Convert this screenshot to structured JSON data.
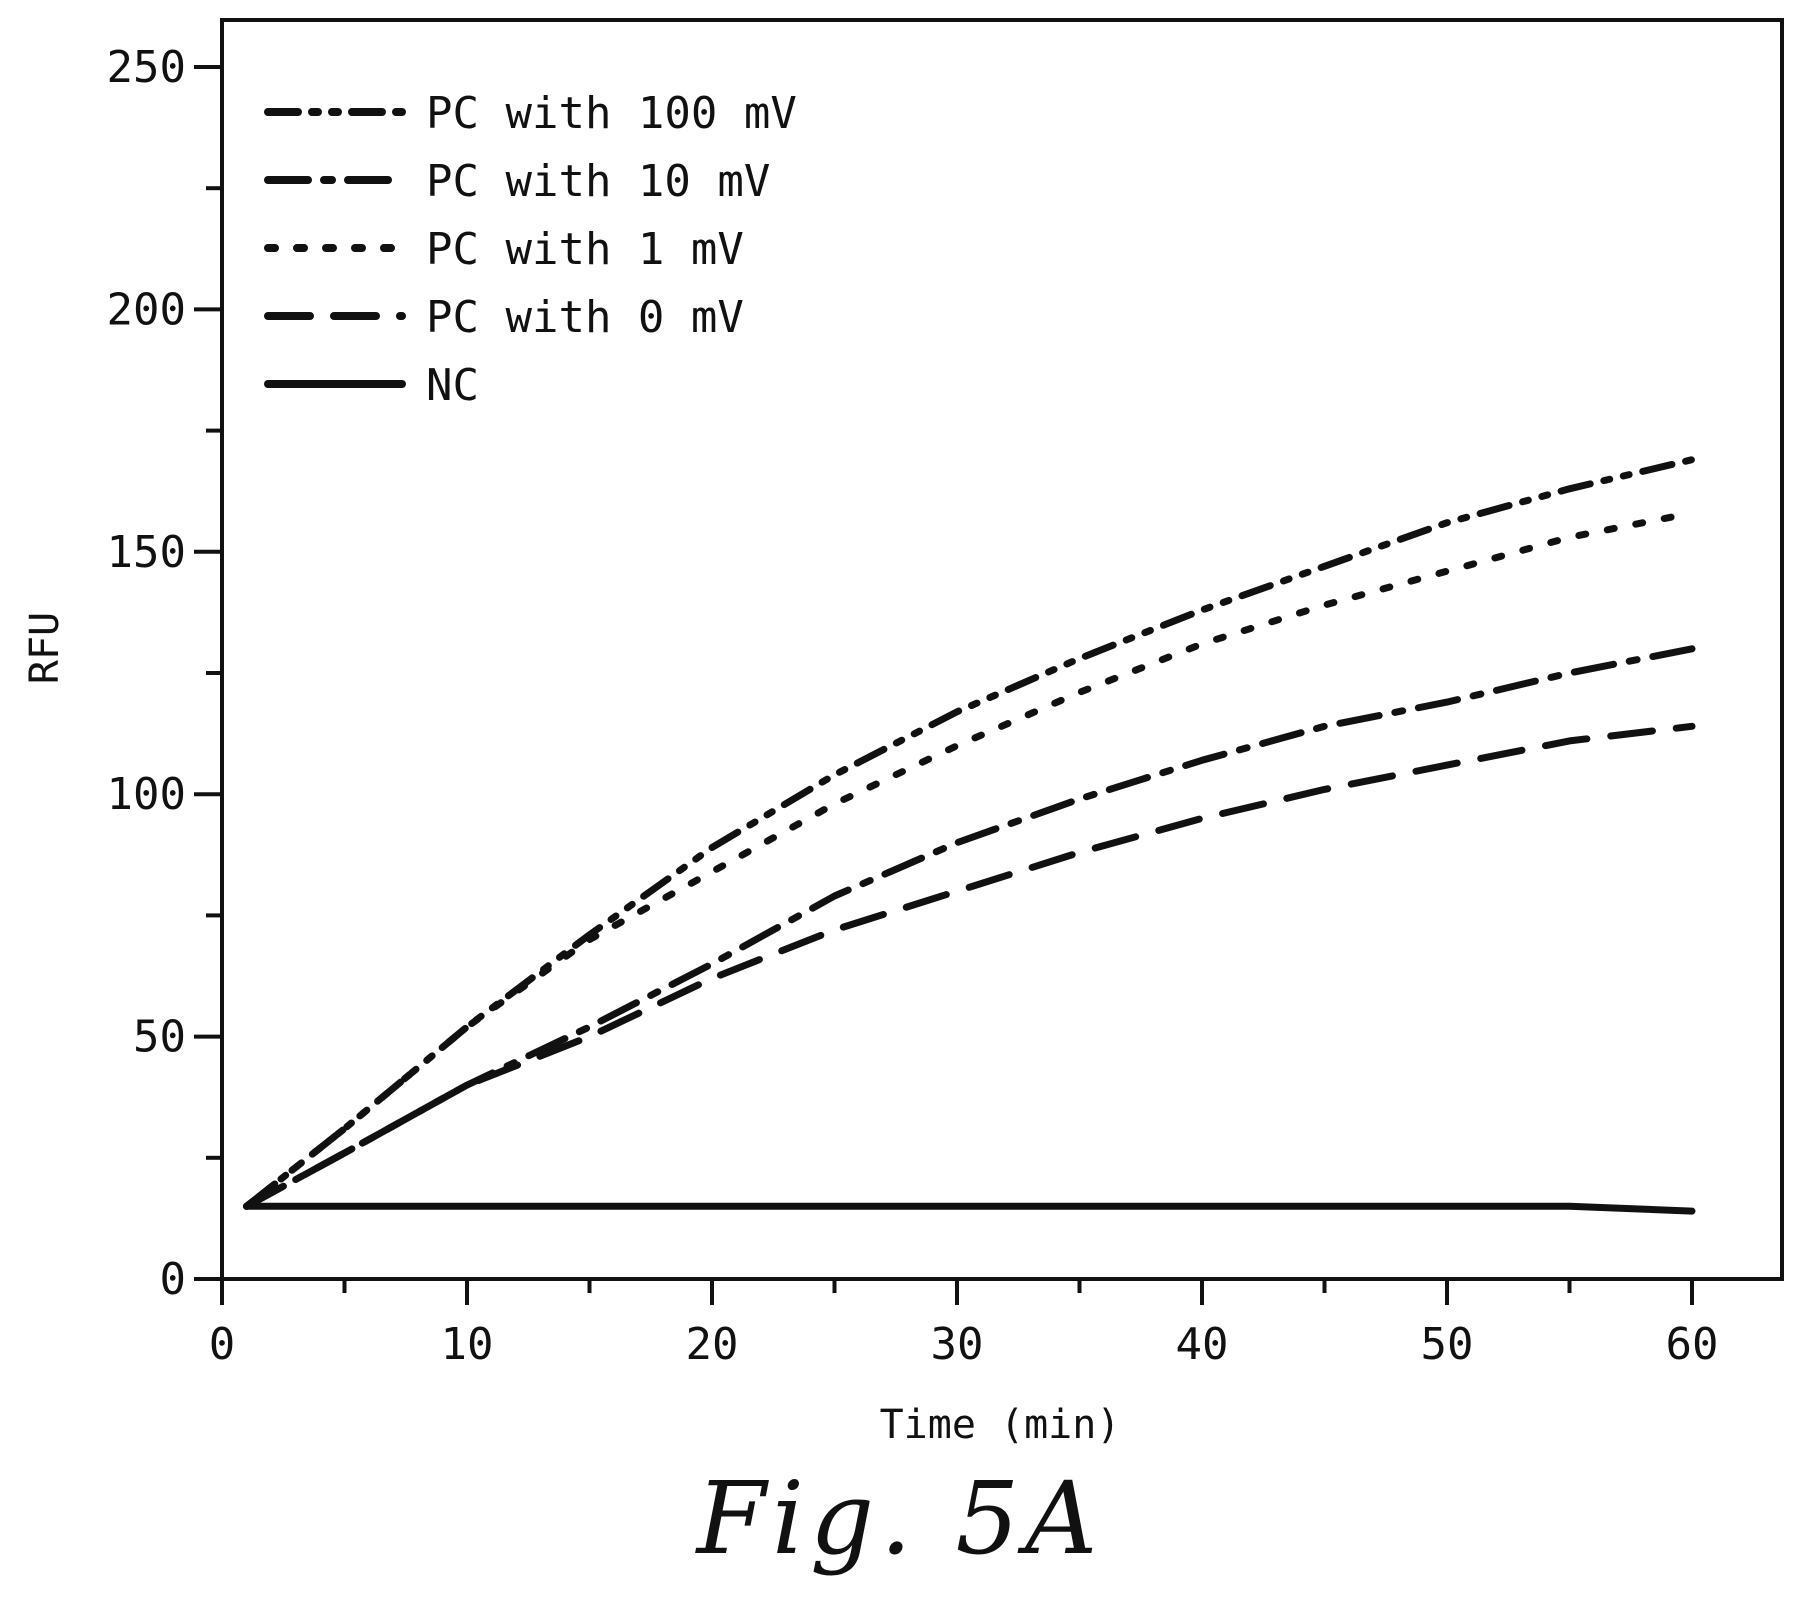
{
  "figure": {
    "caption": "Fig. 5A"
  },
  "chart_data": {
    "type": "line",
    "title": "",
    "xlabel": "Time (min)",
    "ylabel": "RFU",
    "xlim": [
      0,
      64
    ],
    "ylim": [
      0,
      260
    ],
    "xticks": [
      0,
      10,
      20,
      30,
      40,
      50,
      60
    ],
    "yticks": [
      0,
      50,
      100,
      150,
      200,
      250
    ],
    "grid": false,
    "legend_position": "top-left",
    "x": [
      1,
      5,
      10,
      15,
      20,
      25,
      30,
      35,
      40,
      45,
      50,
      55,
      60
    ],
    "series": [
      {
        "name": "PC with 100 mV",
        "style": "dash-dot-dot",
        "values": [
          15,
          31,
          52,
          71,
          89,
          104,
          117,
          128,
          138,
          147,
          156,
          163,
          169
        ]
      },
      {
        "name": "PC with 10 mV",
        "style": "dash-dot",
        "values": [
          15,
          26,
          40,
          52,
          65,
          79,
          90,
          99,
          107,
          114,
          119,
          125,
          130
        ]
      },
      {
        "name": "PC with 1 mV",
        "style": "dotted",
        "values": [
          15,
          31,
          52,
          70,
          84,
          98,
          110,
          121,
          131,
          139,
          146,
          153,
          158
        ]
      },
      {
        "name": "PC with 0 mV",
        "style": "dashed",
        "values": [
          15,
          26,
          40,
          50,
          62,
          72,
          80,
          88,
          95,
          101,
          106,
          111,
          114
        ]
      },
      {
        "name": "NC",
        "style": "solid",
        "values": [
          15,
          15,
          15,
          15,
          15,
          15,
          15,
          15,
          15,
          15,
          15,
          15,
          14
        ]
      }
    ]
  }
}
